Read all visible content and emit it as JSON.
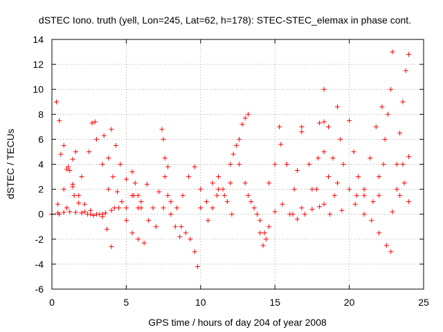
{
  "chart_data": {
    "type": "scatter",
    "title": "dSTEC Iono. truth (yell, Lon=245, Lat=62, h=178): STEC-STEC_elemax in phase cont.",
    "xlabel": "GPS time / hours of day 204 of year 2008",
    "ylabel": "dSTEC  / TECUs",
    "xlim": [
      0,
      25
    ],
    "ylim": [
      -6,
      14
    ],
    "x_ticks": [
      "0",
      "5",
      "10",
      "15",
      "20",
      "25"
    ],
    "y_ticks": [
      "-6",
      "-4",
      "-2",
      "0",
      "2",
      "4",
      "6",
      "8",
      "10",
      "12",
      "14"
    ],
    "grid": true,
    "legend": "none",
    "marker": "plus",
    "color": "#ff0000",
    "series": [
      {
        "x": [
          0.0,
          0.4,
          0.8,
          1.2,
          1.6,
          2.0,
          2.4,
          2.8,
          3.2,
          3.6,
          4.0
        ],
        "y": [
          0.0,
          0.1,
          0.15,
          0.2,
          0.15,
          0.1,
          0.0,
          -0.1,
          0.0,
          0.1,
          0.3
        ]
      },
      {
        "x": [
          0.3,
          0.5,
          0.8,
          1.1,
          1.4,
          1.8,
          2.2,
          2.6
        ],
        "y": [
          9.0,
          7.5,
          5.5,
          3.8,
          2.2,
          0.9,
          0.2,
          0.0
        ]
      },
      {
        "x": [
          0.0,
          0.4,
          0.8,
          1.2,
          1.4,
          1.6
        ],
        "y": [
          0.0,
          0.8,
          2.0,
          3.5,
          4.4,
          5.0
        ]
      },
      {
        "x": [
          0.6,
          1.0,
          1.4,
          1.8,
          2.2,
          2.6,
          3.0,
          3.4
        ],
        "y": [
          4.8,
          3.6,
          2.4,
          1.5,
          0.8,
          0.3,
          0.0,
          -0.2
        ]
      },
      {
        "x": [
          0.5,
          1.0,
          1.5,
          2.0,
          2.5,
          2.9
        ],
        "y": [
          0.0,
          0.5,
          1.5,
          3.0,
          5.0,
          7.4
        ]
      },
      {
        "x": [
          2.7,
          3.0,
          3.4,
          3.8,
          4.2
        ],
        "y": [
          7.3,
          6.0,
          4.0,
          2.0,
          0.5
        ]
      },
      {
        "x": [
          3.4,
          3.7,
          4.0
        ],
        "y": [
          0.0,
          -1.2,
          -2.6
        ]
      },
      {
        "x": [
          3.5,
          3.8,
          4.1,
          4.4,
          4.7
        ],
        "y": [
          6.3,
          4.5,
          3.0,
          1.8,
          1.0
        ]
      },
      {
        "x": [
          4.0,
          4.3,
          4.6,
          5.0,
          5.4,
          5.8
        ],
        "y": [
          6.8,
          5.5,
          4.0,
          2.8,
          1.5,
          0.5
        ]
      },
      {
        "x": [
          4.5,
          5.0,
          5.4,
          5.8,
          6.2
        ],
        "y": [
          0.5,
          -0.5,
          -1.5,
          -2.0,
          -2.3
        ]
      },
      {
        "x": [
          5.0,
          5.5,
          6.0,
          6.5,
          7.0,
          7.5,
          8.0
        ],
        "y": [
          0.5,
          1.5,
          0.5,
          -0.5,
          -1.0,
          0.5,
          1.0
        ]
      },
      {
        "x": [
          5.4,
          5.6,
          5.8
        ],
        "y": [
          3.4,
          2.5,
          1.5
        ]
      },
      {
        "x": [
          6.0,
          6.4,
          6.8,
          7.2
        ],
        "y": [
          1.0,
          2.4,
          0.5,
          1.8
        ]
      },
      {
        "x": [
          7.4,
          7.5,
          7.6,
          7.8
        ],
        "y": [
          6.8,
          6.0,
          4.5,
          3.8
        ]
      },
      {
        "x": [
          7.6,
          7.8,
          8.0,
          8.3,
          8.6
        ],
        "y": [
          3.0,
          1.5,
          0.0,
          -1.0,
          -1.8
        ]
      },
      {
        "x": [
          8.4,
          8.8,
          9.2,
          9.6,
          10.0
        ],
        "y": [
          0.5,
          1.5,
          3.0,
          3.8,
          2.0
        ]
      },
      {
        "x": [
          8.7,
          9.0,
          9.3,
          9.6,
          9.8
        ],
        "y": [
          -1.0,
          -1.5,
          -2.0,
          -3.0,
          -4.2
        ]
      },
      {
        "x": [
          10.0,
          10.4,
          10.8,
          11.2,
          11.6,
          12.0
        ],
        "y": [
          0.5,
          1.0,
          2.5,
          2.0,
          1.5,
          2.5
        ]
      },
      {
        "x": [
          10.5,
          10.8,
          11.1
        ],
        "y": [
          -0.5,
          0.5,
          1.5
        ]
      },
      {
        "x": [
          11.2,
          11.5,
          11.8,
          12.1
        ],
        "y": [
          3.0,
          2.0,
          1.0,
          0.0
        ]
      },
      {
        "x": [
          12.0,
          12.2,
          12.4,
          12.6
        ],
        "y": [
          4.0,
          4.8,
          5.5,
          6.0
        ]
      },
      {
        "x": [
          12.6,
          13.0,
          13.4,
          13.8
        ],
        "y": [
          4.0,
          2.5,
          1.0,
          0.0
        ]
      },
      {
        "x": [
          12.8,
          13.0,
          13.2
        ],
        "y": [
          7.2,
          7.7,
          8.0
        ]
      },
      {
        "x": [
          13.2,
          13.6,
          14.0,
          14.3
        ],
        "y": [
          1.5,
          0.5,
          -0.5,
          -1.5
        ]
      },
      {
        "x": [
          14.0,
          14.2,
          14.4,
          14.6
        ],
        "y": [
          -1.5,
          -2.5,
          -2.0,
          -1.0
        ]
      },
      {
        "x": [
          14.6,
          15.0,
          15.4,
          15.8
        ],
        "y": [
          2.5,
          4.0,
          5.6,
          4.0
        ]
      },
      {
        "x": [
          15.0,
          15.5,
          16.0,
          16.5,
          17.0,
          17.5,
          18.0
        ],
        "y": [
          0.2,
          0.8,
          0.0,
          -0.4,
          0.0,
          0.4,
          0.6
        ]
      },
      {
        "x": [
          15.3,
          15.8,
          16.3,
          16.8
        ],
        "y": [
          7.0,
          4.0,
          2.0,
          0.5
        ]
      },
      {
        "x": [
          16.2,
          16.5,
          16.8
        ],
        "y": [
          0.0,
          3.5,
          7.0
        ]
      },
      {
        "x": [
          16.8,
          17.3,
          17.8,
          18.3,
          18.7
        ],
        "y": [
          6.6,
          4.0,
          2.0,
          0.8,
          0.0
        ]
      },
      {
        "x": [
          17.5,
          17.9,
          18.3
        ],
        "y": [
          2.0,
          4.5,
          7.4
        ]
      },
      {
        "x": [
          18.0,
          18.3,
          18.6,
          19.0,
          19.5
        ],
        "y": [
          7.3,
          5.0,
          3.0,
          1.5,
          0.3
        ]
      },
      {
        "x": [
          18.3,
          18.6,
          18.9,
          19.2
        ],
        "y": [
          10.0,
          7.0,
          4.5,
          2.5
        ]
      },
      {
        "x": [
          19.2,
          19.4,
          19.6,
          20.0,
          20.4
        ],
        "y": [
          8.6,
          6.0,
          4.0,
          2.0,
          0.8
        ]
      },
      {
        "x": [
          20.0,
          20.3,
          20.6,
          21.0
        ],
        "y": [
          7.5,
          5.0,
          3.0,
          1.5
        ]
      },
      {
        "x": [
          20.5,
          21.0,
          21.5,
          22.0,
          22.5,
          22.8
        ],
        "y": [
          1.5,
          0.0,
          -0.5,
          -1.5,
          -2.5,
          -3.0
        ]
      },
      {
        "x": [
          21.0,
          21.4,
          21.8,
          22.2
        ],
        "y": [
          2.0,
          4.5,
          7.0,
          8.6
        ]
      },
      {
        "x": [
          21.6,
          22.0,
          22.4,
          22.8
        ],
        "y": [
          1.0,
          3.0,
          6.0,
          10.0
        ]
      },
      {
        "x": [
          22.0,
          22.3,
          22.6,
          22.9
        ],
        "y": [
          1.5,
          4.0,
          8.0,
          13.0
        ]
      },
      {
        "x": [
          22.9,
          23.2,
          23.6,
          24.0
        ],
        "y": [
          0.2,
          2.0,
          4.0,
          1.0
        ]
      },
      {
        "x": [
          23.2,
          23.4,
          23.6,
          23.8,
          24.0
        ],
        "y": [
          4.0,
          6.5,
          9.0,
          11.5,
          12.8
        ]
      },
      {
        "x": [
          23.4,
          23.7,
          24.0
        ],
        "y": [
          1.5,
          2.5,
          4.6
        ]
      }
    ]
  }
}
